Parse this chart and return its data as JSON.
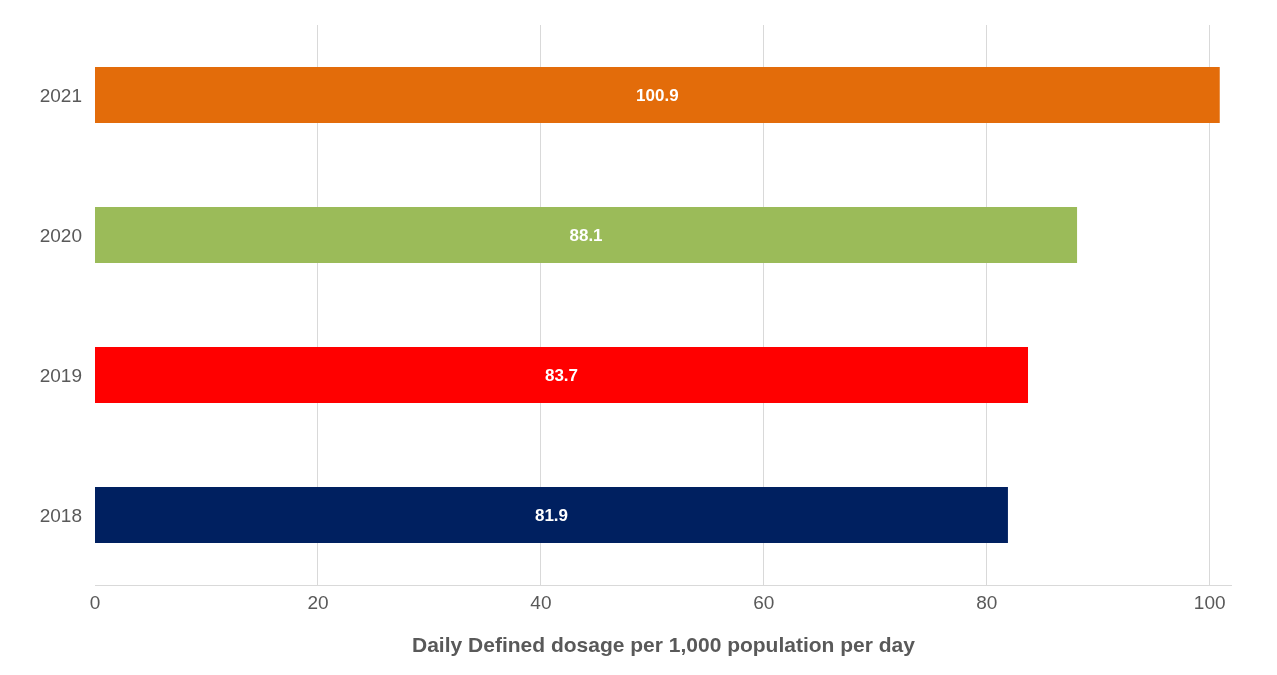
{
  "chart_data": {
    "type": "bar",
    "orientation": "horizontal",
    "categories": [
      "2021",
      "2020",
      "2019",
      "2018"
    ],
    "values": [
      100.9,
      88.1,
      83.7,
      81.9
    ],
    "colors": [
      "#e36c0a",
      "#9bbb59",
      "#ff0000",
      "#002060"
    ],
    "xlabel": "Daily Defined dosage per 1,000 population per day",
    "xlim": [
      0,
      102
    ],
    "xticks": [
      0,
      20,
      40,
      60,
      80,
      100
    ],
    "grid": "x",
    "data_labels": true
  }
}
